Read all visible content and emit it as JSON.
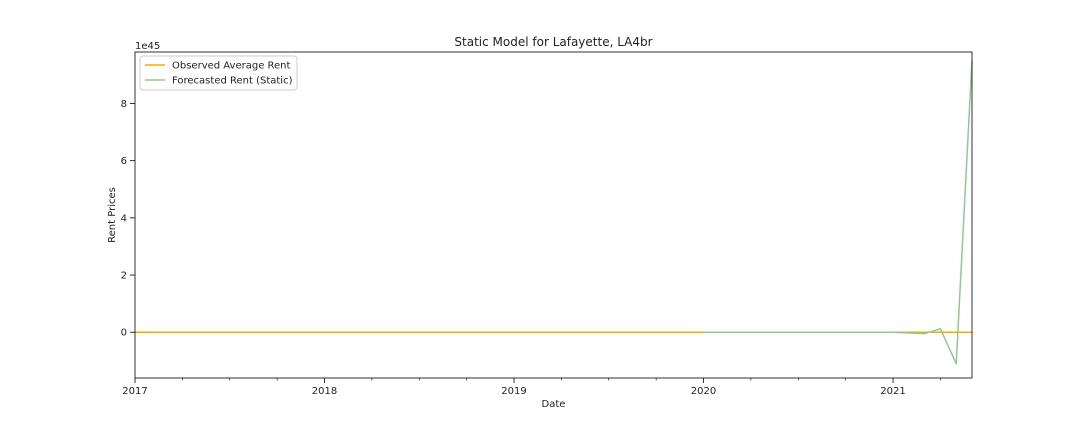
{
  "chart_data": {
    "type": "line",
    "title": "Static Model for Lafayette, LA4br",
    "xlabel": "Date",
    "ylabel": "Rent Prices",
    "y_offset_text": "1e45",
    "y_scale_exponent": 45,
    "xlim": [
      "2017-01",
      "2021-06"
    ],
    "ylim": [
      -1.6,
      9.8
    ],
    "x_ticks": [
      "2017",
      "2018",
      "2019",
      "2020",
      "2021"
    ],
    "y_ticks": [
      "0",
      "2",
      "4",
      "6",
      "8"
    ],
    "grid": false,
    "legend_position": "upper-left",
    "series": [
      {
        "name": "Observed Average Rent",
        "color": "#FFA500",
        "x": [
          "2017-01",
          "2021-06"
        ],
        "y": [
          0,
          0
        ]
      },
      {
        "name": "Forecasted Rent (Static)",
        "color": "#8FC98F",
        "x": [
          "2020-01",
          "2020-04",
          "2020-07",
          "2020-10",
          "2021-01",
          "2021-03",
          "2021-04",
          "2021-05",
          "2021-06"
        ],
        "y": [
          0,
          0,
          0,
          0,
          0,
          -0.05,
          0.12,
          -1.1,
          9.5
        ]
      }
    ]
  }
}
